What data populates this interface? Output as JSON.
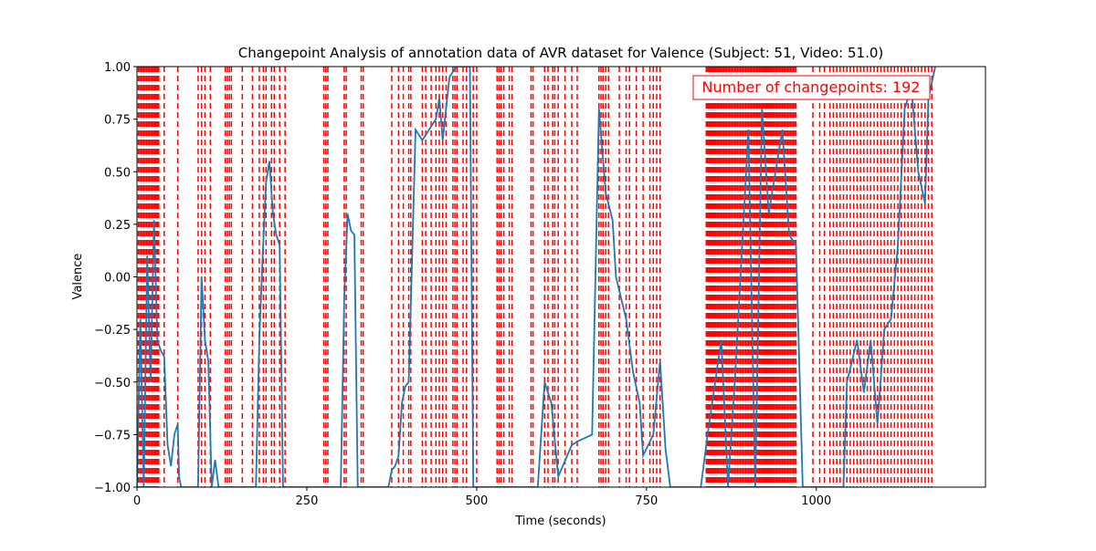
{
  "chart_data": {
    "type": "line",
    "title": "Changepoint Analysis of annotation data of AVR dataset for Valence (Subject: 51, Video: 51.0)",
    "xlabel": "Time (seconds)",
    "ylabel": "Valence",
    "annotation": "Number of changepoints: 192",
    "xlim": [
      0,
      1249
    ],
    "ylim": [
      -1,
      1
    ],
    "xticks": [
      0,
      250,
      500,
      750,
      1000
    ],
    "yticks": [
      {
        "value": -1,
        "label": "−1.00"
      },
      {
        "value": -0.75,
        "label": "−0.75"
      },
      {
        "value": -0.5,
        "label": "−0.50"
      },
      {
        "value": -0.25,
        "label": "−0.25"
      },
      {
        "value": 0,
        "label": "0.00"
      },
      {
        "value": 0.25,
        "label": "0.25"
      },
      {
        "value": 0.5,
        "label": "0.50"
      },
      {
        "value": 0.75,
        "label": "0.75"
      },
      {
        "value": 1,
        "label": "1.00"
      }
    ],
    "series": [
      {
        "color": "#1f77b4",
        "x": [
          0,
          5,
          10,
          15,
          20,
          25,
          30,
          35,
          40,
          45,
          50,
          55,
          60,
          62,
          65,
          90,
          95,
          100,
          105,
          110,
          115,
          120,
          175,
          180,
          185,
          190,
          195,
          200,
          205,
          210,
          215,
          300,
          305,
          310,
          315,
          320,
          325,
          370,
          375,
          380,
          385,
          390,
          395,
          400,
          410,
          420,
          440,
          445,
          450,
          460,
          470,
          490,
          495,
          590,
          600,
          610,
          620,
          640,
          650,
          670,
          680,
          690,
          700,
          705,
          720,
          730,
          740,
          745,
          760,
          770,
          778,
          785,
          830,
          840,
          860,
          870,
          880,
          890,
          900,
          910,
          920,
          930,
          950,
          960,
          970,
          980,
          1040,
          1045,
          1060,
          1070,
          1080,
          1090,
          1100,
          1110,
          1120,
          1130,
          1140,
          1150,
          1160,
          1165,
          1175
        ],
        "values": [
          -1,
          -0.2,
          -1,
          0.1,
          -0.5,
          0.27,
          -0.3,
          -0.35,
          -0.38,
          -0.8,
          -0.9,
          -0.75,
          -0.7,
          -0.95,
          -1,
          -1,
          0,
          -0.3,
          -0.4,
          -1,
          -0.87,
          -1,
          -1,
          -0.3,
          0.1,
          0.45,
          0.55,
          0.3,
          0.2,
          0.15,
          -1,
          -1,
          -0.1,
          0.3,
          0.22,
          0.2,
          -1,
          -1,
          -0.92,
          -0.9,
          -0.85,
          -0.6,
          -0.52,
          -0.5,
          0.7,
          0.65,
          0.75,
          0.85,
          0.65,
          0.95,
          1,
          1,
          -1,
          -1,
          -0.5,
          -0.6,
          -0.95,
          -0.8,
          -0.78,
          -0.75,
          0.8,
          0.4,
          0.27,
          0,
          -0.2,
          -0.45,
          -0.6,
          -0.85,
          -0.75,
          -0.4,
          -0.82,
          -1,
          -1,
          -0.75,
          -0.3,
          -1,
          -0.5,
          0.1,
          0.7,
          -1,
          0.8,
          0.3,
          0.7,
          0.2,
          0.15,
          -1,
          -1,
          -0.5,
          -0.3,
          -0.55,
          -0.3,
          -0.7,
          -0.25,
          -0.2,
          0.15,
          0.8,
          0.9,
          0.5,
          0.35,
          0.85,
          1
        ]
      }
    ],
    "changepoints": {
      "color": "#ff0000",
      "x": [
        2,
        4,
        6,
        8,
        10,
        12,
        14,
        16,
        18,
        20,
        22,
        24,
        26,
        28,
        30,
        32,
        40,
        60,
        90,
        95,
        100,
        108,
        130,
        133,
        136,
        139,
        155,
        170,
        180,
        186,
        190,
        198,
        202,
        210,
        218,
        275,
        278,
        281,
        305,
        308,
        330,
        333,
        375,
        385,
        392,
        400,
        403,
        420,
        425,
        433,
        440,
        445,
        450,
        455,
        465,
        468,
        471,
        480,
        485,
        495,
        500,
        530,
        533,
        536,
        540,
        548,
        552,
        580,
        583,
        600,
        605,
        612,
        615,
        620,
        630,
        640,
        648,
        680,
        683,
        686,
        690,
        694,
        710,
        720,
        725,
        735,
        745,
        755,
        760,
        765,
        770,
        838,
        840,
        842,
        844,
        846,
        848,
        850,
        852,
        854,
        856,
        858,
        860,
        862,
        864,
        866,
        868,
        870,
        872,
        874,
        876,
        878,
        880,
        882,
        884,
        886,
        888,
        890,
        892,
        894,
        896,
        898,
        900,
        902,
        904,
        906,
        908,
        910,
        912,
        914,
        916,
        918,
        920,
        922,
        924,
        926,
        928,
        930,
        932,
        934,
        936,
        938,
        940,
        942,
        944,
        946,
        948,
        950,
        952,
        954,
        956,
        958,
        960,
        962,
        964,
        966,
        968,
        970,
        995,
        1005,
        1012,
        1020,
        1025,
        1030,
        1035,
        1040,
        1045,
        1050,
        1055,
        1060,
        1065,
        1070,
        1075,
        1080,
        1085,
        1090,
        1095,
        1100,
        1105,
        1110,
        1115,
        1120,
        1125,
        1130,
        1135,
        1140,
        1145,
        1150,
        1155,
        1160,
        1165,
        1170
      ]
    }
  }
}
